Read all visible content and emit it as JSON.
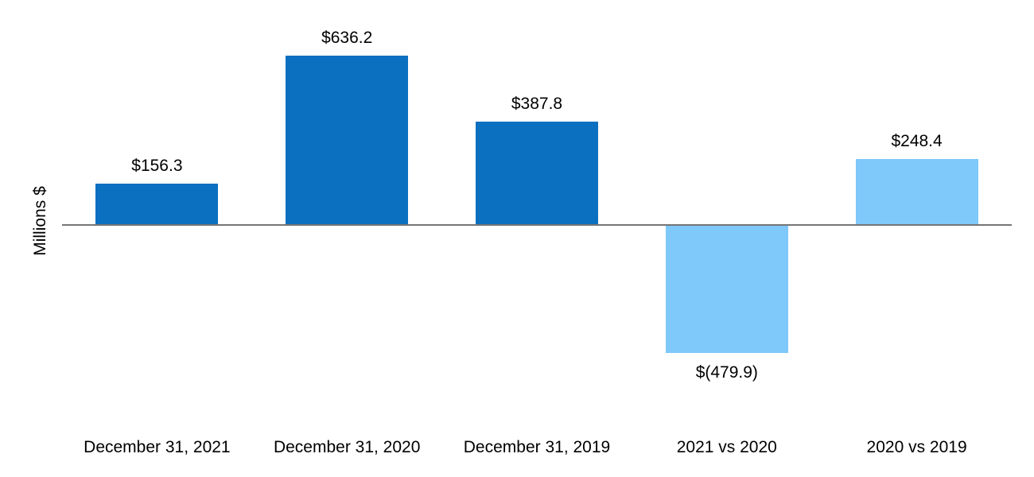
{
  "chart_data": {
    "type": "bar",
    "ylabel": "Millions $",
    "categories": [
      "December 31, 2021",
      "December 31, 2020",
      "December 31, 2019",
      "2021 vs 2020",
      "2020 vs 2019"
    ],
    "values": [
      156.3,
      636.2,
      387.8,
      -479.9,
      248.4
    ],
    "value_labels": [
      "$156.3",
      "$636.2",
      "$387.8",
      "$(479.9)",
      "$248.4"
    ],
    "bar_colors": [
      "#0B70C0",
      "#0B70C0",
      "#0B70C0",
      "#7EC8FA",
      "#7EC8FA"
    ],
    "series_colors": {
      "year_end_balance": "#0B70C0",
      "year_over_year_change": "#7EC8FA"
    },
    "axis_line_color": "#757575",
    "text_color": "#000000",
    "background_color": "#FFFFFF",
    "baseline_value": 0,
    "ylim": [
      -480,
      640
    ],
    "gridlines": false,
    "legend_position": "none"
  }
}
